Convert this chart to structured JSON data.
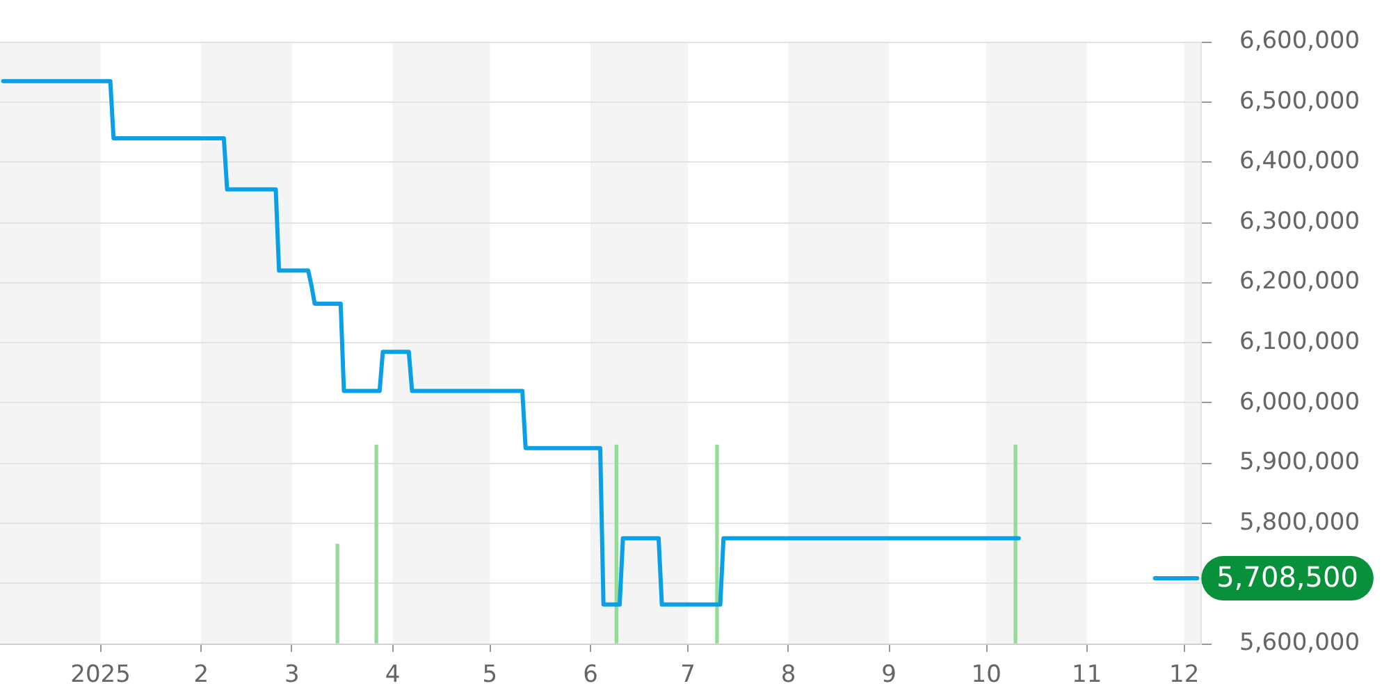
{
  "chart_data": {
    "type": "line",
    "xlim": [
      "2024-12-01",
      "2025-12-06"
    ],
    "xticks": [
      {
        "value": "2025-01-01",
        "label": "2025"
      },
      {
        "value": "2025-02-01",
        "label": "2"
      },
      {
        "value": "2025-03-01",
        "label": "3"
      },
      {
        "value": "2025-04-01",
        "label": "4"
      },
      {
        "value": "2025-05-01",
        "label": "5"
      },
      {
        "value": "2025-06-01",
        "label": "6"
      },
      {
        "value": "2025-07-01",
        "label": "7"
      },
      {
        "value": "2025-08-01",
        "label": "8"
      },
      {
        "value": "2025-09-01",
        "label": "9"
      },
      {
        "value": "2025-10-01",
        "label": "10"
      },
      {
        "value": "2025-11-01",
        "label": "11"
      },
      {
        "value": "2025-12-01",
        "label": "12"
      }
    ],
    "ylim": [
      5600000,
      6600000
    ],
    "yticks": [
      {
        "value": 5600000,
        "label": "5,600,000"
      },
      {
        "value": 5700000,
        "label": null
      },
      {
        "value": 5800000,
        "label": "5,800,000"
      },
      {
        "value": 5900000,
        "label": "5,900,000"
      },
      {
        "value": 6000000,
        "label": "6,000,000"
      },
      {
        "value": 6100000,
        "label": "6,100,000"
      },
      {
        "value": 6200000,
        "label": "6,200,000"
      },
      {
        "value": 6300000,
        "label": "6,300,000"
      },
      {
        "value": 6400000,
        "label": "6,400,000"
      },
      {
        "value": 6500000,
        "label": "6,500,000"
      },
      {
        "value": 6600000,
        "label": "6,600,000"
      }
    ],
    "grid": "y",
    "marker": "none",
    "series": [
      {
        "color": "#0aa0e6",
        "x": [
          "2024-12-02",
          "2025-01-04",
          "2025-01-05",
          "2025-02-08",
          "2025-02-09",
          "2025-02-24",
          "2025-02-25",
          "2025-03-06",
          "2025-03-07",
          "2025-03-08",
          "2025-03-16",
          "2025-03-17",
          "2025-03-28",
          "2025-03-29",
          "2025-04-06",
          "2025-04-07",
          "2025-05-11",
          "2025-05-12",
          "2025-06-04",
          "2025-06-05",
          "2025-06-10",
          "2025-06-11",
          "2025-06-22",
          "2025-06-23",
          "2025-07-11",
          "2025-07-12",
          "2025-10-11",
          "2025-11-01",
          "2025-11-22",
          "2025-12-05"
        ],
        "values": [
          6535000,
          6535000,
          6440000,
          6440000,
          6355000,
          6355000,
          6220000,
          6220000,
          6195000,
          6165000,
          6165000,
          6020000,
          6020000,
          6085000,
          6085000,
          6020000,
          6020000,
          5925000,
          5925000,
          5665000,
          5665000,
          5775000,
          5775000,
          5665000,
          5665000,
          5775000,
          5775000,
          null,
          5708500,
          5708500
        ]
      },
      {
        "type": "bar",
        "color": "#96da9a",
        "x": [
          "2025-03-15",
          "2025-03-27",
          "2025-06-09",
          "2025-07-10",
          "2025-10-10"
        ],
        "values": [
          5765000,
          5930000,
          5930000,
          5930000,
          5930000
        ]
      }
    ],
    "bands": [
      {
        "axis": "x",
        "from": "2024-12-01",
        "to": "2025-01-01",
        "color": "#f4f4f4"
      },
      {
        "axis": "x",
        "from": "2025-02-01",
        "to": "2025-03-01",
        "color": "#f4f4f4"
      },
      {
        "axis": "x",
        "from": "2025-04-01",
        "to": "2025-05-01",
        "color": "#f4f4f4"
      },
      {
        "axis": "x",
        "from": "2025-06-01",
        "to": "2025-07-01",
        "color": "#f4f4f4"
      },
      {
        "axis": "x",
        "from": "2025-08-01",
        "to": "2025-09-01",
        "color": "#f4f4f4"
      },
      {
        "axis": "x",
        "from": "2025-10-01",
        "to": "2025-11-01",
        "color": "#f4f4f4"
      },
      {
        "axis": "x",
        "from": "2025-12-01",
        "to": "2025-12-06",
        "color": "#f4f4f4"
      }
    ],
    "annotations": [
      {
        "text": "5,708,500",
        "x": "2025-12-05",
        "y": 5708500
      }
    ]
  }
}
